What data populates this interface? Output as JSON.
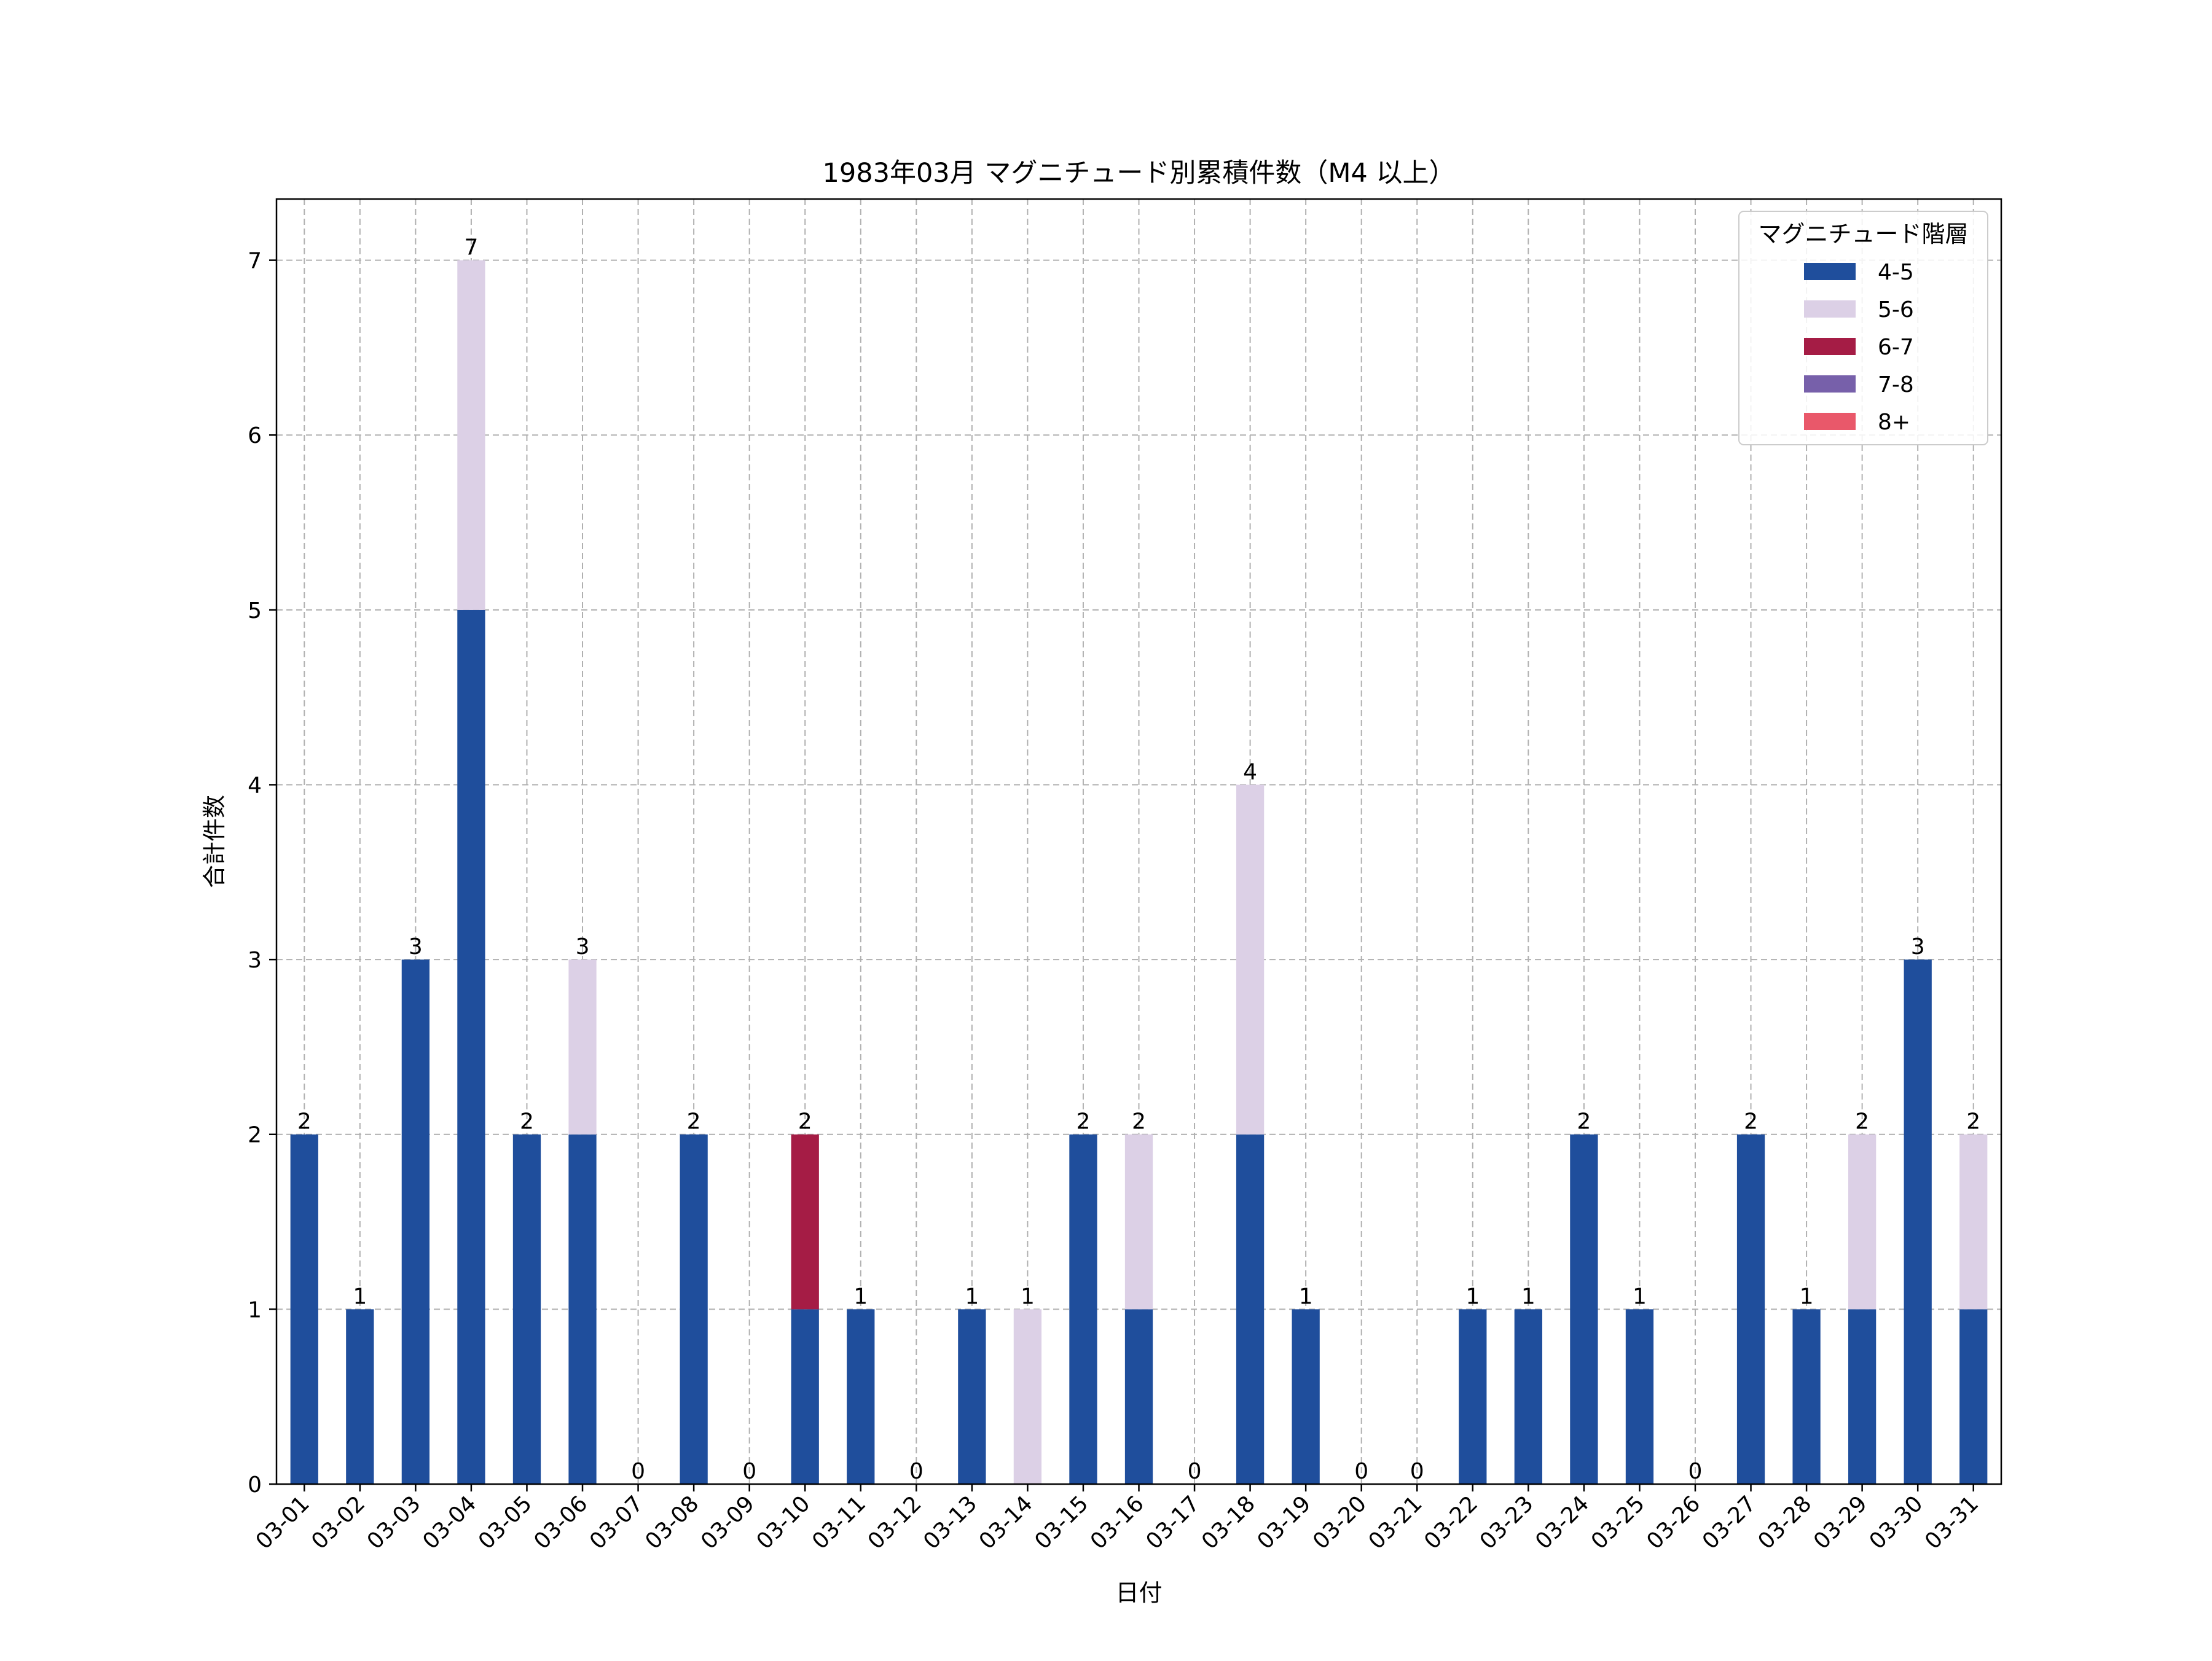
{
  "chart_data": {
    "type": "bar",
    "stacked": true,
    "title": "1983年03月 マグニチュード別累積件数（M4 以上）",
    "xlabel": "日付",
    "ylabel": "合計件数",
    "ylim": [
      0,
      7.35
    ],
    "yticks": [
      "0",
      "1",
      "2",
      "3",
      "4",
      "5",
      "6",
      "7"
    ],
    "grid": true,
    "legend_title": "マグニチュード階層",
    "legend_position": "top-right",
    "categories": [
      "03-01",
      "03-02",
      "03-03",
      "03-04",
      "03-05",
      "03-06",
      "03-07",
      "03-08",
      "03-09",
      "03-10",
      "03-11",
      "03-12",
      "03-13",
      "03-14",
      "03-15",
      "03-16",
      "03-17",
      "03-18",
      "03-19",
      "03-20",
      "03-21",
      "03-22",
      "03-23",
      "03-24",
      "03-25",
      "03-26",
      "03-27",
      "03-28",
      "03-29",
      "03-30",
      "03-31"
    ],
    "series": [
      {
        "name": "4-5",
        "color": "#1f4e9c",
        "values": [
          2,
          1,
          3,
          5,
          2,
          2,
          0,
          2,
          0,
          1,
          1,
          0,
          1,
          0,
          2,
          1,
          0,
          2,
          1,
          0,
          0,
          1,
          1,
          2,
          1,
          0,
          2,
          1,
          1,
          3,
          1
        ]
      },
      {
        "name": "5-6",
        "color": "#dcd0e6",
        "values": [
          0,
          0,
          0,
          2,
          0,
          1,
          0,
          0,
          0,
          0,
          0,
          0,
          0,
          1,
          0,
          1,
          0,
          2,
          0,
          0,
          0,
          0,
          0,
          0,
          0,
          0,
          0,
          0,
          1,
          0,
          1
        ]
      },
      {
        "name": "6-7",
        "color": "#a51c45",
        "values": [
          0,
          0,
          0,
          0,
          0,
          0,
          0,
          0,
          0,
          1,
          0,
          0,
          0,
          0,
          0,
          0,
          0,
          0,
          0,
          0,
          0,
          0,
          0,
          0,
          0,
          0,
          0,
          0,
          0,
          0,
          0
        ]
      },
      {
        "name": "7-8",
        "color": "#7760aa",
        "values": [
          0,
          0,
          0,
          0,
          0,
          0,
          0,
          0,
          0,
          0,
          0,
          0,
          0,
          0,
          0,
          0,
          0,
          0,
          0,
          0,
          0,
          0,
          0,
          0,
          0,
          0,
          0,
          0,
          0,
          0,
          0
        ]
      },
      {
        "name": "8+",
        "color": "#e9586a",
        "values": [
          0,
          0,
          0,
          0,
          0,
          0,
          0,
          0,
          0,
          0,
          0,
          0,
          0,
          0,
          0,
          0,
          0,
          0,
          0,
          0,
          0,
          0,
          0,
          0,
          0,
          0,
          0,
          0,
          0,
          0,
          0
        ]
      }
    ],
    "totals": [
      2,
      1,
      3,
      7,
      2,
      3,
      0,
      2,
      0,
      2,
      1,
      0,
      1,
      1,
      2,
      2,
      0,
      4,
      1,
      0,
      0,
      1,
      1,
      2,
      1,
      0,
      2,
      1,
      2,
      3,
      2
    ]
  }
}
